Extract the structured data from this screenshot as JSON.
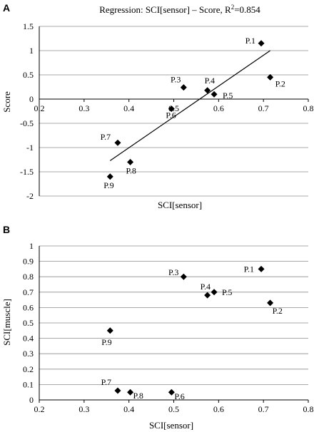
{
  "chart_data": [
    {
      "panel_letter": "A",
      "type": "scatter",
      "title_prefix": "Regression: SCI[sensor] – Score, R",
      "title_sup": "2",
      "title_suffix": "=0.854",
      "xlabel": "SCI[sensor]",
      "ylabel": "Score",
      "xlim": [
        0.2,
        0.8
      ],
      "ylim": [
        -2,
        1.5
      ],
      "xticks": [
        "0.2",
        "0.3",
        "0.4",
        "0.5",
        "0.6",
        "0.7",
        "0.8"
      ],
      "yticks": [
        "1.5",
        "1",
        "0.5",
        "0",
        "-0.5",
        "-1",
        "-1.5",
        "-2"
      ],
      "x_axis_at_y": 0,
      "grid": "horizontal",
      "points": [
        {
          "label": "P.1",
          "x": 0.695,
          "y": 1.15
        },
        {
          "label": "P.2",
          "x": 0.715,
          "y": 0.45
        },
        {
          "label": "P.3",
          "x": 0.522,
          "y": 0.24
        },
        {
          "label": "P.4",
          "x": 0.575,
          "y": 0.18
        },
        {
          "label": "P.5",
          "x": 0.59,
          "y": 0.1
        },
        {
          "label": "P.6",
          "x": 0.495,
          "y": -0.2
        },
        {
          "label": "P.7",
          "x": 0.375,
          "y": -0.9
        },
        {
          "label": "P.8",
          "x": 0.403,
          "y": -1.3
        },
        {
          "label": "P.9",
          "x": 0.358,
          "y": -1.6
        }
      ],
      "trendline": {
        "x": [
          0.358,
          0.715
        ],
        "y": [
          -1.27,
          1.0
        ]
      }
    },
    {
      "panel_letter": "B",
      "type": "scatter",
      "xlabel": "SCI[sensor]",
      "ylabel": "SCI[muscle]",
      "xlim": [
        0.2,
        0.8
      ],
      "ylim": [
        0,
        1
      ],
      "xticks": [
        "0.2",
        "0.3",
        "0.4",
        "0.5",
        "0.6",
        "0.7",
        "0.8"
      ],
      "yticks": [
        "1",
        "0.9",
        "0.8",
        "0.7",
        "0.6",
        "0.5",
        "0.4",
        "0.3",
        "0.2",
        "0.1",
        "0"
      ],
      "grid": "horizontal",
      "points": [
        {
          "label": "P.1",
          "x": 0.695,
          "y": 0.85
        },
        {
          "label": "P.2",
          "x": 0.715,
          "y": 0.63
        },
        {
          "label": "P.3",
          "x": 0.522,
          "y": 0.8
        },
        {
          "label": "P.4",
          "x": 0.575,
          "y": 0.68
        },
        {
          "label": "P.5",
          "x": 0.59,
          "y": 0.7
        },
        {
          "label": "P.6",
          "x": 0.495,
          "y": 0.05
        },
        {
          "label": "P.7",
          "x": 0.375,
          "y": 0.06
        },
        {
          "label": "P.8",
          "x": 0.403,
          "y": 0.05
        },
        {
          "label": "P.9",
          "x": 0.358,
          "y": 0.45
        }
      ]
    }
  ]
}
